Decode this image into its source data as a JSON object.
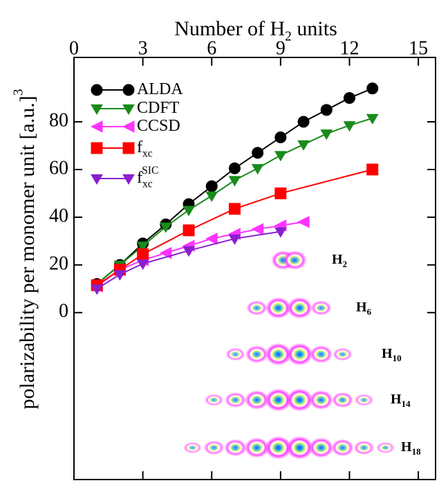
{
  "chart_data": {
    "type": "line",
    "x_label": {
      "text": "Number of H",
      "sub": "2",
      "tail": " units"
    },
    "y_label": {
      "text": "polarizability per monomer unit [a.u.]",
      "sup": "3"
    },
    "xlim": [
      0,
      15.75
    ],
    "ylim": [
      -70,
      107
    ],
    "xticks": [
      0,
      3,
      6,
      9,
      12,
      15
    ],
    "yticks": [
      0,
      20,
      40,
      60,
      80
    ],
    "series": [
      {
        "name": {
          "base": "ALDA"
        },
        "color": "#000000",
        "marker": "circle",
        "x": [
          1,
          2,
          3,
          4,
          5,
          6,
          7,
          8,
          9,
          10,
          11,
          12,
          13
        ],
        "values": [
          12,
          20,
          29,
          37,
          45.5,
          53,
          60.5,
          67,
          73.5,
          80,
          85,
          90,
          94
        ]
      },
      {
        "name": {
          "base": "CDFT"
        },
        "color": "#1a8a1a",
        "marker": "triangle-down",
        "x": [
          1,
          2,
          3,
          4,
          5,
          6,
          7,
          8,
          9,
          10,
          11,
          12,
          13
        ],
        "values": [
          12,
          20,
          28,
          36,
          43,
          49,
          55.5,
          60.5,
          66,
          70.5,
          75,
          78.5,
          81.5
        ]
      },
      {
        "name": {
          "base": "CCSD"
        },
        "color": "#ff33ff",
        "marker": "triangle-left",
        "x": [
          1,
          2,
          3,
          4,
          5,
          6,
          7,
          8,
          9,
          10
        ],
        "values": [
          11,
          18,
          22,
          25,
          28,
          31,
          33,
          35,
          36.5,
          38
        ]
      },
      {
        "name": {
          "base": "f",
          "sub": "xc"
        },
        "color": "#ff0000",
        "marker": "square",
        "x": [
          1,
          2,
          3,
          5,
          7,
          9,
          13
        ],
        "values": [
          11.5,
          18,
          24.5,
          34.5,
          43.5,
          50,
          60
        ]
      },
      {
        "name": {
          "base": "f",
          "sub": "xc",
          "sup": "SIC"
        },
        "color": "#8a1fd0",
        "marker": "triangle-down",
        "x": [
          1,
          2,
          3,
          5,
          7,
          9
        ],
        "values": [
          10,
          16,
          20.5,
          26,
          31,
          34
        ]
      }
    ],
    "annotations": [
      {
        "base": "H",
        "sub": "2"
      },
      {
        "base": "H",
        "sub": "6"
      },
      {
        "base": "H",
        "sub": "10"
      },
      {
        "base": "H",
        "sub": "14"
      },
      {
        "base": "H",
        "sub": "18"
      }
    ]
  }
}
